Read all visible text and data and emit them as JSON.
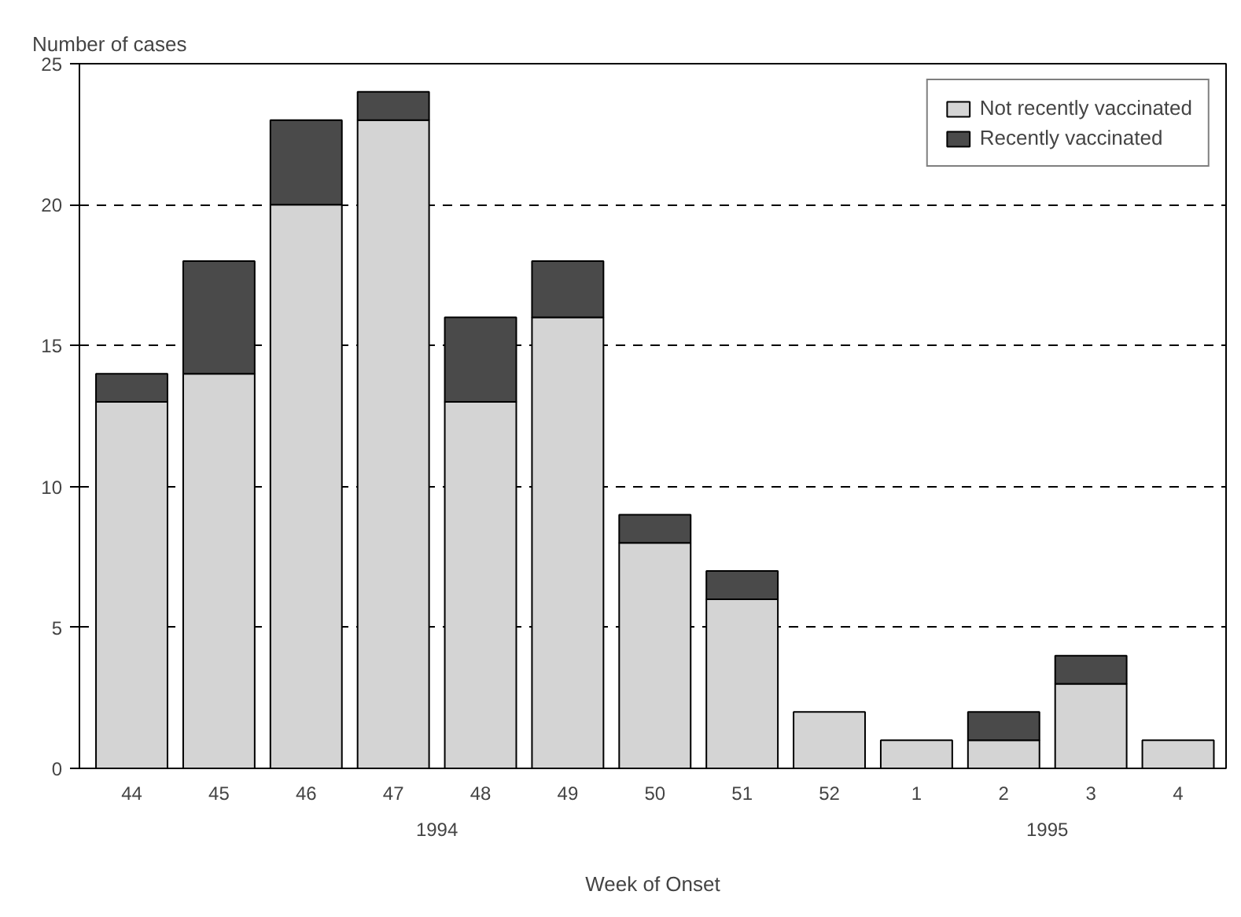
{
  "chart_data": {
    "type": "bar",
    "stacked": true,
    "ylabel": "Number of cases",
    "xlabel": "Week of Onset",
    "categories": [
      "44",
      "45",
      "46",
      "47",
      "48",
      "49",
      "50",
      "51",
      "52",
      "1",
      "2",
      "3",
      "4"
    ],
    "series": [
      {
        "name": "Not recently vaccinated",
        "color": "#d4d4d4",
        "values": [
          13,
          14,
          20,
          23,
          13,
          16,
          8,
          6,
          2,
          1,
          1,
          3,
          1
        ]
      },
      {
        "name": "Recently vaccinated",
        "color": "#4a4a4a",
        "values": [
          1,
          4,
          3,
          1,
          3,
          2,
          1,
          1,
          0,
          0,
          1,
          1,
          0
        ]
      }
    ],
    "ylim": [
      0,
      25
    ],
    "yticks": [
      0,
      5,
      10,
      15,
      20,
      25
    ],
    "grid": "y",
    "legend": "top right",
    "annotations": [
      "1994",
      "1995"
    ]
  }
}
